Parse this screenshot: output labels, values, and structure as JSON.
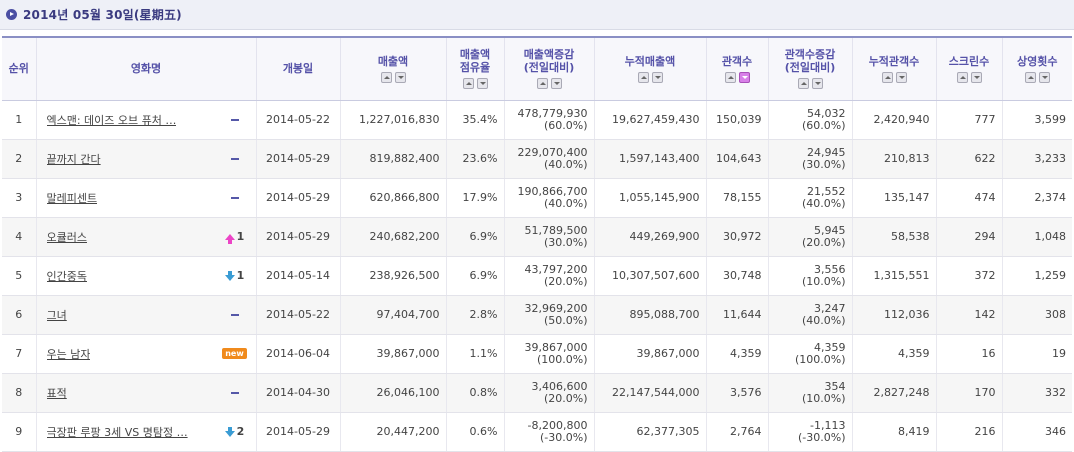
{
  "header": {
    "date": "2014년 05월 30일(星期五)"
  },
  "columns": {
    "rank": "순위",
    "title": "영화명",
    "release": "개봉일",
    "sales": "매출액",
    "share_l1": "매출액",
    "share_l2": "점유율",
    "sales_chg_l1": "매출액증감",
    "sales_chg_l2": "(전일대비)",
    "cum_sales": "누적매출액",
    "audience": "관객수",
    "aud_chg_l1": "관객수증감",
    "aud_chg_l2": "(전일대비)",
    "cum_audience": "누적관객수",
    "screens": "스크린수",
    "shows": "상영횟수"
  },
  "rows": [
    {
      "rank": "1",
      "title": "엑스맨: 데이즈 오브 퓨처 …",
      "change": "",
      "change_type": "same",
      "release": "2014-05-22",
      "sales": "1,227,016,830",
      "share": "35.4%",
      "sales_chg": "478,779,930",
      "sales_chg_pct": "(60.0%)",
      "cum_sales": "19,627,459,430",
      "audience": "150,039",
      "aud_chg": "54,032",
      "aud_chg_pct": "(60.0%)",
      "cum_audience": "2,420,940",
      "screens": "777",
      "shows": "3,599"
    },
    {
      "rank": "2",
      "title": "끝까지 간다",
      "change": "",
      "change_type": "same",
      "release": "2014-05-29",
      "sales": "819,882,400",
      "share": "23.6%",
      "sales_chg": "229,070,400",
      "sales_chg_pct": "(40.0%)",
      "cum_sales": "1,597,143,400",
      "audience": "104,643",
      "aud_chg": "24,945",
      "aud_chg_pct": "(30.0%)",
      "cum_audience": "210,813",
      "screens": "622",
      "shows": "3,233"
    },
    {
      "rank": "3",
      "title": "말레피센트",
      "change": "",
      "change_type": "same",
      "release": "2014-05-29",
      "sales": "620,866,800",
      "share": "17.9%",
      "sales_chg": "190,866,700",
      "sales_chg_pct": "(40.0%)",
      "cum_sales": "1,055,145,900",
      "audience": "78,155",
      "aud_chg": "21,552",
      "aud_chg_pct": "(40.0%)",
      "cum_audience": "135,147",
      "screens": "474",
      "shows": "2,374"
    },
    {
      "rank": "4",
      "title": "오큘러스",
      "change": "1",
      "change_type": "up",
      "release": "2014-05-29",
      "sales": "240,682,200",
      "share": "6.9%",
      "sales_chg": "51,789,500",
      "sales_chg_pct": "(30.0%)",
      "cum_sales": "449,269,900",
      "audience": "30,972",
      "aud_chg": "5,945",
      "aud_chg_pct": "(20.0%)",
      "cum_audience": "58,538",
      "screens": "294",
      "shows": "1,048"
    },
    {
      "rank": "5",
      "title": "인간중독",
      "change": "1",
      "change_type": "down",
      "release": "2014-05-14",
      "sales": "238,926,500",
      "share": "6.9%",
      "sales_chg": "43,797,200",
      "sales_chg_pct": "(20.0%)",
      "cum_sales": "10,307,507,600",
      "audience": "30,748",
      "aud_chg": "3,556",
      "aud_chg_pct": "(10.0%)",
      "cum_audience": "1,315,551",
      "screens": "372",
      "shows": "1,259"
    },
    {
      "rank": "6",
      "title": "그녀",
      "change": "",
      "change_type": "same",
      "release": "2014-05-22",
      "sales": "97,404,700",
      "share": "2.8%",
      "sales_chg": "32,969,200",
      "sales_chg_pct": "(50.0%)",
      "cum_sales": "895,088,700",
      "audience": "11,644",
      "aud_chg": "3,247",
      "aud_chg_pct": "(40.0%)",
      "cum_audience": "112,036",
      "screens": "142",
      "shows": "308"
    },
    {
      "rank": "7",
      "title": "우는 남자",
      "change": "new",
      "change_type": "new",
      "release": "2014-06-04",
      "sales": "39,867,000",
      "share": "1.1%",
      "sales_chg": "39,867,000",
      "sales_chg_pct": "(100.0%)",
      "cum_sales": "39,867,000",
      "audience": "4,359",
      "aud_chg": "4,359",
      "aud_chg_pct": "(100.0%)",
      "cum_audience": "4,359",
      "screens": "16",
      "shows": "19"
    },
    {
      "rank": "8",
      "title": "표적",
      "change": "",
      "change_type": "same",
      "release": "2014-04-30",
      "sales": "26,046,100",
      "share": "0.8%",
      "sales_chg": "3,406,600",
      "sales_chg_pct": "(20.0%)",
      "cum_sales": "22,147,544,000",
      "audience": "3,576",
      "aud_chg": "354",
      "aud_chg_pct": "(10.0%)",
      "cum_audience": "2,827,248",
      "screens": "170",
      "shows": "332"
    },
    {
      "rank": "9",
      "title": "극장판 루팡 3세 VS 명탐정 …",
      "change": "2",
      "change_type": "down",
      "release": "2014-05-29",
      "sales": "20,447,200",
      "share": "0.6%",
      "sales_chg": "-8,200,800",
      "sales_chg_pct": "(-30.0%)",
      "cum_sales": "62,377,305",
      "audience": "2,764",
      "aud_chg": "-1,113",
      "aud_chg_pct": "(-30.0%)",
      "cum_audience": "8,419",
      "screens": "216",
      "shows": "346"
    }
  ]
}
